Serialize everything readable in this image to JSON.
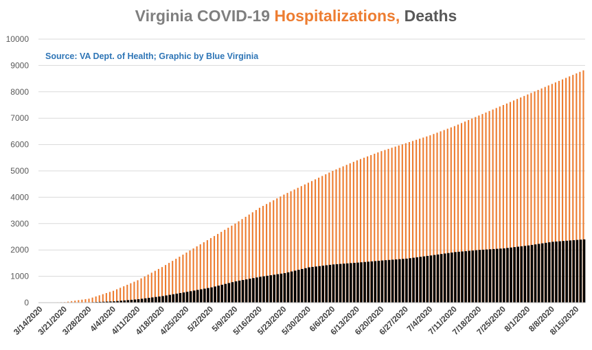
{
  "title": {
    "part1": "Virginia COVID-19 ",
    "part2": "Hospitalizations,",
    "part3": " Deaths"
  },
  "source_note": "Source: VA Dept. of Health; Graphic by Blue Virginia",
  "colors": {
    "hospitalizations": "#ed7d31",
    "deaths": "#000000",
    "grid": "#d9d9d9",
    "title_gray": "#7f7f7f",
    "title_dark": "#595959",
    "source_blue": "#2e75b6"
  },
  "chart_data": {
    "type": "bar",
    "title": "Virginia COVID-19 Hospitalizations, Deaths",
    "ylim": [
      0,
      10000
    ],
    "y_ticks": [
      0,
      1000,
      2000,
      3000,
      4000,
      5000,
      6000,
      7000,
      8000,
      9000,
      10000
    ],
    "grid": true,
    "start_date": "3/14/2020",
    "x_tick_labels": [
      "3/14/2020",
      "3/21/2020",
      "3/28/2020",
      "4/4/2020",
      "4/11/2020",
      "4/18/2020",
      "4/25/2020",
      "5/2/2020",
      "5/9/2020",
      "5/16/2020",
      "5/23/2020",
      "5/30/2020",
      "6/6/2020",
      "6/13/2020",
      "6/20/2020",
      "6/27/2020",
      "7/4/2020",
      "7/11/2020",
      "7/18/2020",
      "7/25/2020",
      "8/1/2020",
      "8/8/2020",
      "8/15/2020"
    ],
    "series": [
      {
        "name": "Hospitalizations",
        "color": "#ed7d31",
        "points": [
          [
            "3/14/2020",
            0
          ],
          [
            "3/21/2020",
            20
          ],
          [
            "3/28/2020",
            150
          ],
          [
            "4/4/2020",
            450
          ],
          [
            "4/11/2020",
            850
          ],
          [
            "4/18/2020",
            1350
          ],
          [
            "4/25/2020",
            1900
          ],
          [
            "5/2/2020",
            2450
          ],
          [
            "5/9/2020",
            3000
          ],
          [
            "5/16/2020",
            3600
          ],
          [
            "5/23/2020",
            4100
          ],
          [
            "5/30/2020",
            4550
          ],
          [
            "6/6/2020",
            5000
          ],
          [
            "6/13/2020",
            5400
          ],
          [
            "6/20/2020",
            5750
          ],
          [
            "6/27/2020",
            6050
          ],
          [
            "7/4/2020",
            6350
          ],
          [
            "7/11/2020",
            6700
          ],
          [
            "7/18/2020",
            7100
          ],
          [
            "7/25/2020",
            7500
          ],
          [
            "8/1/2020",
            7900
          ],
          [
            "8/8/2020",
            8300
          ],
          [
            "8/15/2020",
            8700
          ]
        ]
      },
      {
        "name": "Deaths",
        "color": "#000000",
        "points": [
          [
            "3/14/2020",
            0
          ],
          [
            "3/21/2020",
            2
          ],
          [
            "3/28/2020",
            14
          ],
          [
            "4/4/2020",
            50
          ],
          [
            "4/11/2020",
            130
          ],
          [
            "4/18/2020",
            250
          ],
          [
            "4/25/2020",
            410
          ],
          [
            "5/2/2020",
            580
          ],
          [
            "5/9/2020",
            810
          ],
          [
            "5/16/2020",
            980
          ],
          [
            "5/23/2020",
            1120
          ],
          [
            "5/30/2020",
            1340
          ],
          [
            "6/6/2020",
            1450
          ],
          [
            "6/13/2020",
            1520
          ],
          [
            "6/20/2020",
            1600
          ],
          [
            "6/27/2020",
            1670
          ],
          [
            "7/4/2020",
            1790
          ],
          [
            "7/11/2020",
            1920
          ],
          [
            "7/18/2020",
            2000
          ],
          [
            "7/25/2020",
            2060
          ],
          [
            "8/1/2020",
            2170
          ],
          [
            "8/8/2020",
            2310
          ],
          [
            "8/15/2020",
            2380
          ]
        ]
      }
    ]
  }
}
